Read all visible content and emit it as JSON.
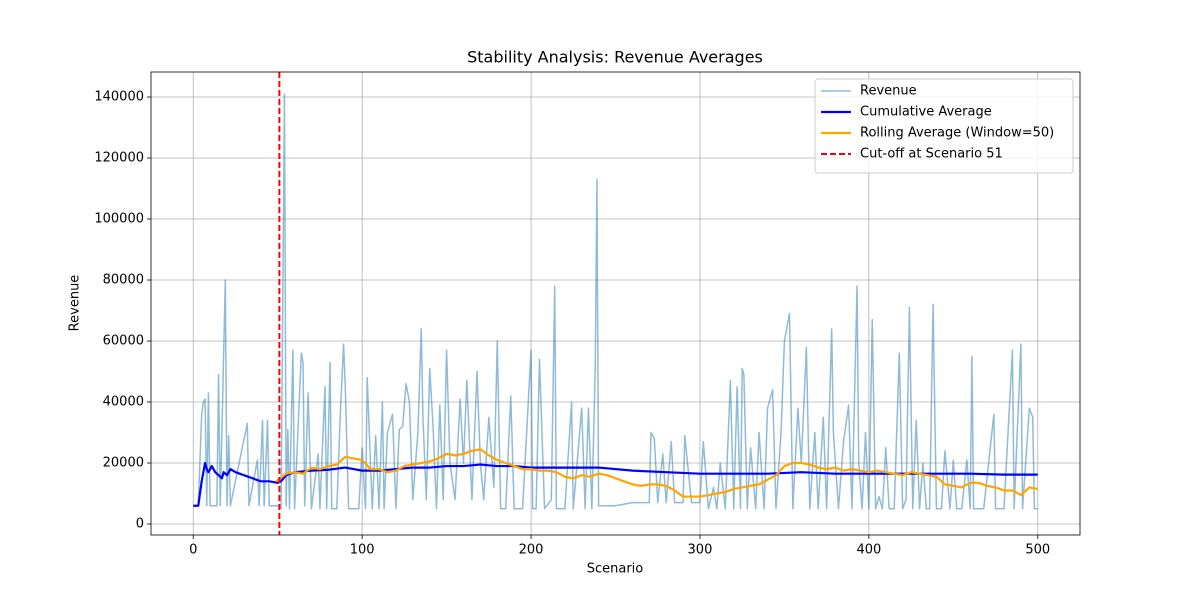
{
  "chart_data": {
    "type": "line",
    "title": "Stability Analysis: Revenue Averages",
    "x_label": "Scenario",
    "y_label": "Revenue",
    "xlim": [
      -25,
      525
    ],
    "ylim": [
      -3600,
      148200
    ],
    "xticks": [
      0,
      100,
      200,
      300,
      400,
      500
    ],
    "yticks": [
      0,
      20000,
      40000,
      60000,
      80000,
      100000,
      120000,
      140000
    ],
    "grid": true,
    "legend": "upper right",
    "series": [
      {
        "name": "Revenue",
        "color": "#1f77b4",
        "opacity": 0.5,
        "width": 1.5,
        "x": [
          0,
          3,
          5,
          6,
          7,
          8,
          9,
          10,
          14,
          15,
          16,
          19,
          20,
          21,
          22,
          32,
          33,
          38,
          39,
          41,
          42,
          44,
          45,
          50,
          52,
          54,
          55,
          56,
          57,
          59,
          60,
          64,
          65,
          66,
          68,
          70,
          74,
          75,
          78,
          79,
          81,
          82,
          85,
          87,
          89,
          90,
          92,
          98,
          100,
          102,
          103,
          106,
          108,
          110,
          112,
          113,
          115,
          118,
          120,
          122,
          124,
          126,
          128,
          130,
          133,
          135,
          136,
          138,
          140,
          142,
          144,
          146,
          148,
          150,
          152,
          155,
          158,
          160,
          162,
          165,
          168,
          170,
          172,
          175,
          178,
          180,
          182,
          185,
          188,
          190,
          195,
          200,
          201,
          203,
          205,
          208,
          212,
          214,
          215,
          220,
          224,
          225,
          230,
          232,
          234,
          236,
          238,
          239,
          240,
          250,
          260,
          270,
          271,
          273,
          275,
          278,
          280,
          283,
          285,
          290,
          291,
          295,
          300,
          302,
          305,
          308,
          310,
          312,
          315,
          318,
          320,
          322,
          324,
          325,
          326,
          328,
          330,
          333,
          335,
          338,
          340,
          343,
          345,
          348,
          350,
          353,
          355,
          358,
          360,
          363,
          365,
          368,
          370,
          373,
          375,
          378,
          379,
          382,
          385,
          388,
          390,
          393,
          394,
          396,
          398,
          400,
          402,
          404,
          406,
          408,
          410,
          412,
          415,
          418,
          420,
          422,
          424,
          426,
          428,
          430,
          432,
          434,
          436,
          438,
          440,
          443,
          445,
          448,
          450,
          452,
          455,
          458,
          460,
          461,
          462,
          468,
          474,
          475,
          480,
          485,
          486,
          490,
          491,
          495,
          497,
          498,
          500
        ],
        "values": [
          6000,
          6000,
          36000,
          40000,
          41000,
          6000,
          43000,
          6000,
          6000,
          49000,
          6000,
          80000,
          6000,
          29000,
          6000,
          33000,
          6000,
          21000,
          6000,
          34000,
          6000,
          34000,
          6000,
          6000,
          5000,
          141000,
          6000,
          31000,
          5000,
          57000,
          5000,
          56000,
          53000,
          6000,
          43000,
          5000,
          23000,
          5000,
          45000,
          5000,
          53000,
          5000,
          5000,
          35000,
          59000,
          45000,
          5000,
          5000,
          25000,
          5000,
          48000,
          5000,
          29000,
          5000,
          40000,
          5000,
          30000,
          36000,
          5000,
          31000,
          32000,
          46000,
          40000,
          8000,
          30000,
          64000,
          35000,
          8000,
          51000,
          32000,
          5000,
          39000,
          8000,
          57000,
          20000,
          8000,
          41000,
          20000,
          47000,
          8000,
          50000,
          20000,
          8000,
          35000,
          12000,
          60000,
          5000,
          5000,
          42000,
          5000,
          5000,
          57000,
          5000,
          5000,
          54000,
          5000,
          8000,
          78000,
          5000,
          5000,
          40000,
          5000,
          38000,
          5000,
          38000,
          5000,
          51000,
          113000,
          6000,
          6000,
          7000,
          7000,
          30000,
          28000,
          7000,
          23000,
          7000,
          27000,
          7000,
          7000,
          29000,
          7000,
          7000,
          27000,
          5000,
          12000,
          5000,
          20000,
          5000,
          47000,
          5000,
          45000,
          5000,
          51000,
          49000,
          5000,
          25000,
          5000,
          30000,
          5000,
          38000,
          44000,
          5000,
          30000,
          60000,
          69000,
          5000,
          38000,
          20000,
          58000,
          5000,
          30000,
          5000,
          35000,
          5000,
          64000,
          30000,
          5000,
          27000,
          39000,
          5000,
          78000,
          20000,
          5000,
          30000,
          5000,
          67000,
          5000,
          9000,
          5000,
          25000,
          5000,
          5000,
          56000,
          5000,
          8000,
          71000,
          5000,
          34000,
          5000,
          20000,
          5000,
          5000,
          72000,
          5000,
          5000,
          24000,
          5000,
          21000,
          5000,
          5000,
          21000,
          5000,
          55000,
          5000,
          5000,
          36000,
          5000,
          5000,
          57000,
          5000,
          59000,
          5000,
          38000,
          35000,
          5000,
          5000
        ]
      },
      {
        "name": "Cumulative Average",
        "color": "blue",
        "opacity": 1,
        "width": 2.2,
        "x": [
          0,
          3,
          5,
          7,
          8,
          9,
          11,
          13,
          15,
          17,
          18,
          20,
          22,
          25,
          30,
          35,
          40,
          45,
          50,
          52,
          55,
          60,
          70,
          80,
          90,
          100,
          110,
          120,
          130,
          140,
          150,
          160,
          170,
          180,
          190,
          200,
          210,
          220,
          240,
          260,
          280,
          300,
          320,
          340,
          360,
          380,
          400,
          420,
          440,
          460,
          480,
          500
        ],
        "values": [
          6000,
          6000,
          14000,
          20000,
          18000,
          17000,
          19000,
          17000,
          16000,
          15000,
          17000,
          16000,
          18000,
          17000,
          16000,
          15000,
          14000,
          14000,
          13500,
          14000,
          16000,
          17000,
          17500,
          17800,
          18500,
          17500,
          17500,
          18000,
          18500,
          18500,
          19000,
          19000,
          19500,
          19000,
          19000,
          18500,
          18500,
          18500,
          18500,
          17500,
          17000,
          16500,
          16500,
          16500,
          17000,
          16500,
          16500,
          16500,
          16500,
          16500,
          16200,
          16200
        ]
      },
      {
        "name": "Rolling Average (Window=50)",
        "color": "orange",
        "opacity": 1,
        "width": 2.2,
        "x": [
          49,
          55,
          60,
          65,
          70,
          75,
          80,
          85,
          90,
          95,
          100,
          105,
          110,
          115,
          120,
          125,
          130,
          135,
          140,
          145,
          150,
          155,
          160,
          165,
          170,
          175,
          180,
          185,
          190,
          195,
          200,
          205,
          210,
          215,
          220,
          225,
          230,
          235,
          240,
          245,
          250,
          255,
          260,
          265,
          270,
          275,
          280,
          285,
          290,
          295,
          300,
          305,
          310,
          315,
          320,
          325,
          330,
          335,
          340,
          345,
          350,
          355,
          360,
          365,
          370,
          375,
          380,
          385,
          390,
          395,
          400,
          405,
          410,
          415,
          420,
          425,
          430,
          435,
          440,
          445,
          450,
          455,
          460,
          465,
          470,
          475,
          480,
          485,
          490,
          495,
          500
        ],
        "values": [
          14000,
          16500,
          17000,
          16500,
          18500,
          18000,
          19000,
          19500,
          22000,
          21500,
          21000,
          18000,
          18000,
          17000,
          17500,
          19000,
          19500,
          20000,
          20500,
          21500,
          23000,
          22500,
          23000,
          24000,
          24500,
          22500,
          21000,
          20000,
          19000,
          18000,
          18000,
          17500,
          17500,
          17000,
          15500,
          15000,
          16000,
          15500,
          16500,
          16000,
          15000,
          14000,
          13000,
          12500,
          13000,
          13000,
          12500,
          11000,
          9000,
          9000,
          9000,
          9500,
          10000,
          10500,
          11500,
          12000,
          12500,
          13000,
          14500,
          16000,
          19000,
          20000,
          20000,
          19500,
          18500,
          18000,
          18500,
          17500,
          18000,
          17500,
          17000,
          17500,
          17000,
          16500,
          16000,
          17000,
          16500,
          16000,
          15500,
          13000,
          12500,
          12000,
          13500,
          13500,
          12500,
          12000,
          11000,
          11000,
          9500,
          12000,
          11500
        ]
      }
    ],
    "vline": {
      "x": 51,
      "name": "Cut-off at Scenario 51",
      "color": "red"
    }
  }
}
